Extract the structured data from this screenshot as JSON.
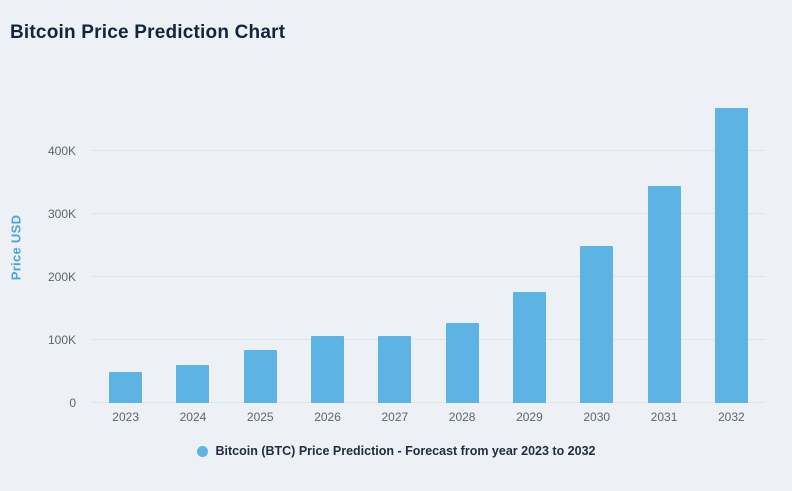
{
  "chart_data": {
    "type": "bar",
    "title": "Bitcoin Price Prediction Chart",
    "ylabel": "Price USD",
    "categories": [
      "2023",
      "2024",
      "2025",
      "2026",
      "2027",
      "2028",
      "2029",
      "2030",
      "2031",
      "2032"
    ],
    "values": [
      50,
      60,
      84,
      106,
      106,
      127,
      177,
      250,
      344,
      468
    ],
    "value_unit": "K",
    "ytick_labels": [
      "0",
      "100K",
      "200K",
      "300K",
      "400K"
    ],
    "ytick_values": [
      0,
      100,
      200,
      300,
      400
    ],
    "ylim": [
      0,
      500
    ],
    "grid": true,
    "legend": {
      "label": "Bitcoin (BTC) Price Prediction - Forecast from year 2023 to 2032",
      "position": "bottom"
    },
    "bar_color": "#5CB3E4",
    "background_color": "#EDF1F5",
    "title_color": "#15233E",
    "ylabel_color": "#4BA6D9"
  }
}
